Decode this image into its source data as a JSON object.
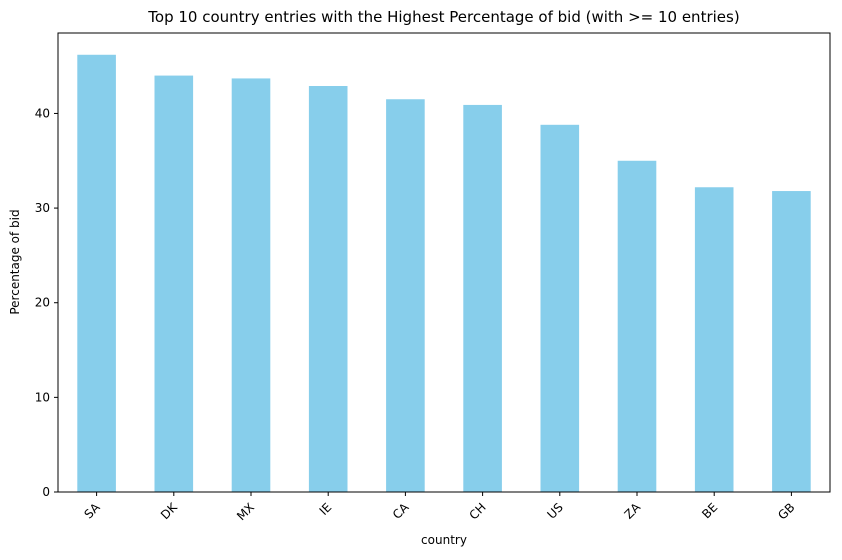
{
  "chart_data": {
    "type": "bar",
    "title": "Top 10 country entries with the Highest Percentage of bid (with >= 10 entries)",
    "xlabel": "country",
    "ylabel": "Percentage of bid",
    "categories": [
      "SA",
      "DK",
      "MX",
      "IE",
      "CA",
      "CH",
      "US",
      "ZA",
      "BE",
      "GB"
    ],
    "values": [
      46.2,
      44.0,
      43.7,
      42.9,
      41.5,
      40.9,
      38.8,
      35.0,
      32.2,
      31.8
    ],
    "ylim": [
      0,
      48.5
    ],
    "yticks": [
      0,
      10,
      20,
      30,
      40
    ],
    "bar_color": "#87ceeb",
    "grid": false,
    "legend": "none"
  }
}
